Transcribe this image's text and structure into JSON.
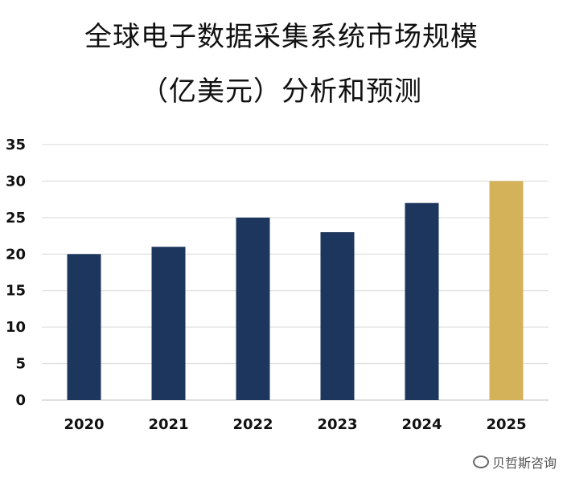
{
  "chart_data": {
    "type": "bar",
    "title_line1": "全球电子数据采集系统市场规模",
    "title_line2": "（亿美元）分析和预测",
    "categories": [
      "2020",
      "2021",
      "2022",
      "2023",
      "2024",
      "2025"
    ],
    "values": [
      20,
      21,
      25,
      23,
      27,
      30
    ],
    "ylim": [
      0,
      35
    ],
    "yticks": [
      0,
      5,
      10,
      15,
      20,
      25,
      30,
      35
    ],
    "grid": true,
    "legend": "none",
    "colors": {
      "actual": "#1d365e",
      "forecast": "#d4b25a",
      "grid": "#d9d9d9"
    },
    "forecast_categories": [
      "2025"
    ]
  },
  "watermark": {
    "text": "贝哲斯咨询"
  }
}
